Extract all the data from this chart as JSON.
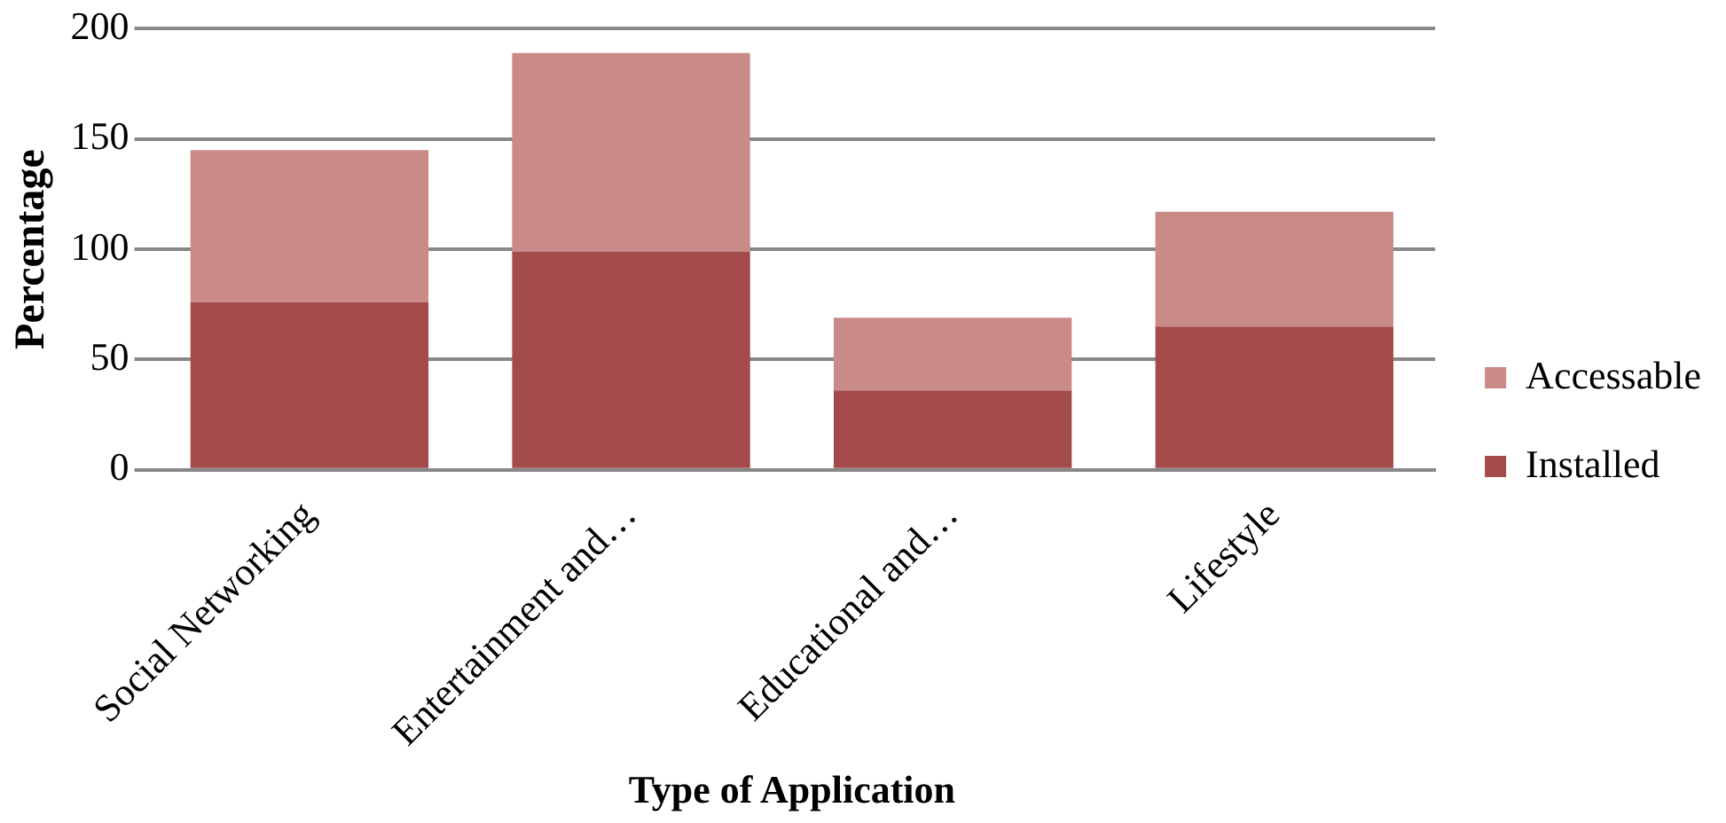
{
  "chart_data": {
    "type": "bar",
    "stacked": true,
    "xlabel": "Type of Application",
    "ylabel": "Percentage",
    "categories": [
      "Social Networking",
      "Entertainment and…",
      "Educational and…",
      "Lifestyle"
    ],
    "series": [
      {
        "name": "Installed",
        "color": "#a34a4a",
        "values": [
          76,
          99,
          36,
          65
        ]
      },
      {
        "name": "Accessable",
        "color": "#c98a88",
        "values": [
          69,
          90,
          33,
          52
        ]
      }
    ],
    "ylim": [
      0,
      200
    ],
    "yticks": [
      0,
      50,
      100,
      150,
      200
    ],
    "grid": "y",
    "legend": "right"
  }
}
